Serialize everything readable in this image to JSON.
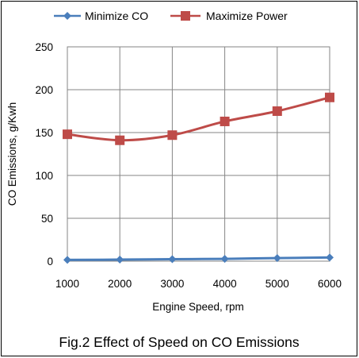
{
  "chart_data": {
    "type": "line",
    "title": "",
    "caption": "Fig.2 Effect of Speed on CO Emissions",
    "xlabel": "Engine Speed, rpm",
    "ylabel": "CO Emissions, g/Kwh",
    "x": [
      1000,
      2000,
      3000,
      4000,
      5000,
      6000
    ],
    "xlim": [
      1000,
      6000
    ],
    "ylim": [
      0,
      250
    ],
    "yticks": [
      0,
      50,
      100,
      150,
      200,
      250
    ],
    "xtick_labels": [
      "1000",
      "2000",
      "3000",
      "4000",
      "5000",
      "6000"
    ],
    "ytick_labels": [
      "0",
      "50",
      "100",
      "150",
      "200",
      "250"
    ],
    "grid": true,
    "legend_position": "top",
    "series": [
      {
        "name": "Minimize CO",
        "values": [
          1.5,
          1.8,
          2.3,
          2.7,
          3.6,
          4.3
        ],
        "color": "#4a7ebb",
        "marker": "diamond"
      },
      {
        "name": "Maximize Power",
        "values": [
          148,
          141,
          147,
          163,
          175,
          191
        ],
        "color": "#be4b48",
        "marker": "square"
      }
    ]
  }
}
